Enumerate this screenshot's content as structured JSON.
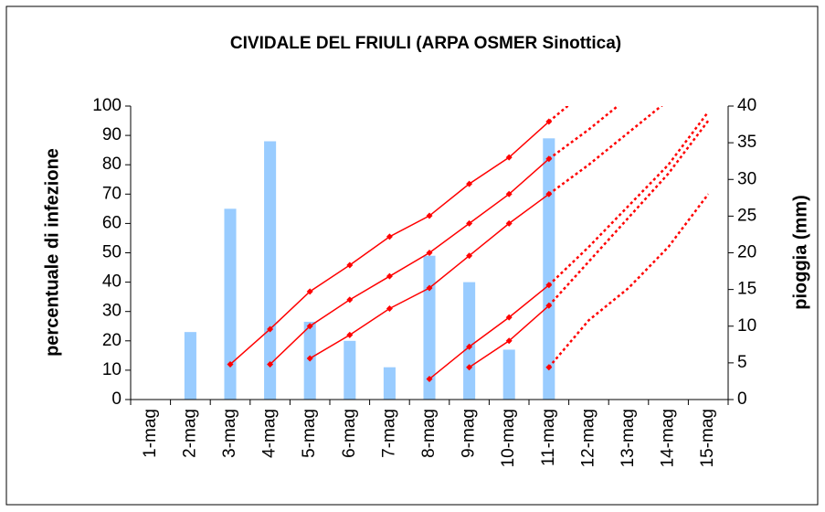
{
  "chart_data": {
    "type": "bar-line",
    "title": "CIVIDALE DEL FRIULI (ARPA OSMER Sinottica)",
    "ylabel": "percentuale di infezione",
    "y2label": "pioggia (mm)",
    "categories": [
      "1-mag",
      "2-mag",
      "3-mag",
      "4-mag",
      "5-mag",
      "6-mag",
      "7-mag",
      "8-mag",
      "9-mag",
      "10-mag",
      "11-mag",
      "12-mag",
      "13-mag",
      "14-mag",
      "15-mag"
    ],
    "ylim": [
      0,
      100
    ],
    "yticks": [
      0,
      10,
      20,
      30,
      40,
      50,
      60,
      70,
      80,
      90,
      100
    ],
    "y2lim": [
      0,
      40
    ],
    "y2ticks": [
      0,
      5,
      10,
      15,
      20,
      25,
      30,
      35,
      40
    ],
    "series": [
      {
        "type": "bar",
        "axis": "y2",
        "color": "#99ccff",
        "values": [
          null,
          9.2,
          26,
          35.2,
          10.6,
          8,
          4.4,
          19.6,
          16,
          6.8,
          35.6,
          null,
          null,
          null,
          null
        ]
      },
      {
        "type": "line",
        "style": "solid",
        "marker": "diamond",
        "color": "#ff0000",
        "values": [
          null,
          null,
          12,
          24,
          36.8,
          45.8,
          55.5,
          62.6,
          73.5,
          82.5,
          94.7,
          null,
          null,
          null,
          null
        ]
      },
      {
        "type": "line",
        "style": "solid",
        "marker": "diamond",
        "color": "#ff0000",
        "values": [
          null,
          null,
          null,
          12,
          25,
          34,
          42,
          50,
          60,
          70,
          82,
          null,
          null,
          null,
          null
        ]
      },
      {
        "type": "line",
        "style": "solid",
        "marker": "diamond",
        "color": "#ff0000",
        "values": [
          null,
          null,
          null,
          null,
          14,
          22,
          31,
          38,
          49,
          60,
          70,
          null,
          null,
          null,
          null
        ]
      },
      {
        "type": "line",
        "style": "solid",
        "marker": "diamond",
        "color": "#ff0000",
        "values": [
          null,
          null,
          null,
          null,
          null,
          null,
          null,
          7,
          18,
          28,
          39,
          null,
          null,
          null,
          null
        ]
      },
      {
        "type": "line",
        "style": "solid",
        "marker": "diamond",
        "color": "#ff0000",
        "values": [
          null,
          null,
          null,
          null,
          null,
          null,
          null,
          null,
          11,
          20,
          32,
          null,
          null,
          null,
          null
        ]
      },
      {
        "type": "line",
        "style": "solid",
        "marker": "diamond",
        "color": "#ff0000",
        "values": [
          null,
          null,
          null,
          null,
          null,
          null,
          null,
          null,
          null,
          null,
          11,
          null,
          null,
          null,
          null
        ]
      },
      {
        "type": "line",
        "style": "dotted",
        "color": "#ff0000",
        "values": [
          null,
          null,
          null,
          null,
          null,
          null,
          null,
          null,
          null,
          null,
          94.7,
          106,
          null,
          null,
          null
        ]
      },
      {
        "type": "line",
        "style": "dotted",
        "color": "#ff0000",
        "values": [
          null,
          null,
          null,
          null,
          null,
          null,
          null,
          null,
          null,
          null,
          82,
          92,
          103,
          null,
          null
        ]
      },
      {
        "type": "line",
        "style": "dotted",
        "color": "#ff0000",
        "values": [
          null,
          null,
          null,
          null,
          null,
          null,
          null,
          null,
          null,
          null,
          70,
          80,
          91,
          102,
          null
        ]
      },
      {
        "type": "line",
        "style": "dotted",
        "color": "#ff0000",
        "values": [
          null,
          null,
          null,
          null,
          null,
          null,
          null,
          null,
          null,
          null,
          39,
          52,
          66,
          80,
          98
        ]
      },
      {
        "type": "line",
        "style": "dotted",
        "color": "#ff0000",
        "values": [
          null,
          null,
          null,
          null,
          null,
          null,
          null,
          null,
          null,
          null,
          32,
          47,
          62,
          77,
          95
        ]
      },
      {
        "type": "line",
        "style": "dotted",
        "color": "#ff0000",
        "values": [
          null,
          null,
          null,
          null,
          null,
          null,
          null,
          null,
          null,
          null,
          11,
          27,
          38,
          52,
          70
        ]
      }
    ]
  }
}
